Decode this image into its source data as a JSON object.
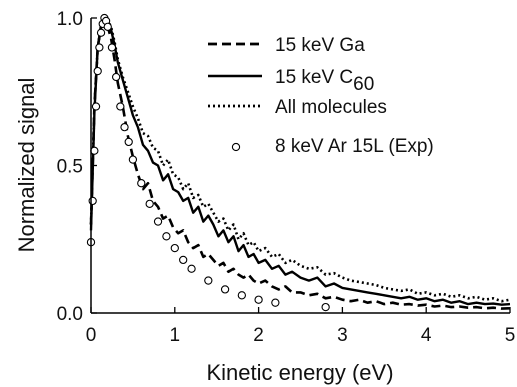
{
  "chart_data": {
    "type": "line",
    "xlabel": "Kinetic energy (eV)",
    "ylabel": "Normalized signal",
    "xlim": [
      0,
      5
    ],
    "ylim": [
      0,
      1.0
    ],
    "x_ticks": [
      "0",
      "1",
      "2",
      "3",
      "4",
      "5"
    ],
    "y_ticks": [
      "0.0",
      "0.5",
      "1.0"
    ],
    "grid": false,
    "legend_position": "top-right",
    "series": [
      {
        "name": "15 keV Ga",
        "name_parts": [
          "15 keV Ga",
          ""
        ],
        "style": "dashed",
        "color": "#000000",
        "x": [
          0.0,
          0.04,
          0.08,
          0.12,
          0.16,
          0.2,
          0.24,
          0.28,
          0.32,
          0.38,
          0.44,
          0.5,
          0.56,
          0.62,
          0.68,
          0.74,
          0.8,
          0.86,
          0.92,
          0.98,
          1.04,
          1.1,
          1.16,
          1.22,
          1.28,
          1.34,
          1.4,
          1.46,
          1.52,
          1.58,
          1.64,
          1.7,
          1.76,
          1.82,
          1.88,
          1.94,
          2.0,
          2.08,
          2.16,
          2.24,
          2.32,
          2.4,
          2.5,
          2.6,
          2.7,
          2.8,
          2.9,
          3.0,
          3.1,
          3.2,
          3.3,
          3.4,
          3.5,
          3.6,
          3.7,
          3.8,
          3.9,
          4.0,
          4.1,
          4.2,
          4.3,
          4.4,
          4.5,
          4.6,
          4.7,
          4.8,
          4.9,
          5.0
        ],
        "y": [
          0.3,
          0.7,
          0.9,
          0.97,
          0.99,
          0.97,
          0.93,
          0.86,
          0.78,
          0.7,
          0.6,
          0.53,
          0.47,
          0.42,
          0.44,
          0.38,
          0.36,
          0.32,
          0.33,
          0.29,
          0.27,
          0.28,
          0.24,
          0.22,
          0.23,
          0.19,
          0.2,
          0.18,
          0.16,
          0.17,
          0.14,
          0.15,
          0.13,
          0.12,
          0.13,
          0.11,
          0.1,
          0.11,
          0.09,
          0.08,
          0.09,
          0.07,
          0.07,
          0.06,
          0.065,
          0.05,
          0.055,
          0.045,
          0.04,
          0.045,
          0.035,
          0.04,
          0.03,
          0.035,
          0.028,
          0.03,
          0.025,
          0.028,
          0.022,
          0.025,
          0.02,
          0.022,
          0.018,
          0.02,
          0.016,
          0.018,
          0.015,
          0.016
        ]
      },
      {
        "name": "15 keV C60",
        "name_parts": [
          "15 keV C",
          "60"
        ],
        "style": "solid",
        "color": "#000000",
        "x": [
          0.0,
          0.04,
          0.08,
          0.12,
          0.16,
          0.2,
          0.24,
          0.28,
          0.32,
          0.38,
          0.44,
          0.5,
          0.56,
          0.62,
          0.68,
          0.74,
          0.8,
          0.86,
          0.92,
          0.98,
          1.04,
          1.1,
          1.16,
          1.22,
          1.28,
          1.34,
          1.4,
          1.46,
          1.52,
          1.58,
          1.64,
          1.7,
          1.76,
          1.82,
          1.88,
          1.94,
          2.0,
          2.08,
          2.16,
          2.24,
          2.32,
          2.4,
          2.5,
          2.6,
          2.7,
          2.8,
          2.9,
          3.0,
          3.1,
          3.2,
          3.3,
          3.4,
          3.5,
          3.6,
          3.7,
          3.8,
          3.9,
          4.0,
          4.1,
          4.2,
          4.3,
          4.4,
          4.5,
          4.6,
          4.7,
          4.8,
          4.9,
          5.0
        ],
        "y": [
          0.28,
          0.68,
          0.9,
          0.98,
          1.0,
          0.99,
          0.96,
          0.91,
          0.85,
          0.79,
          0.73,
          0.67,
          0.63,
          0.57,
          0.55,
          0.51,
          0.5,
          0.45,
          0.47,
          0.42,
          0.41,
          0.38,
          0.39,
          0.34,
          0.36,
          0.31,
          0.33,
          0.3,
          0.26,
          0.28,
          0.24,
          0.26,
          0.21,
          0.23,
          0.19,
          0.2,
          0.17,
          0.18,
          0.15,
          0.16,
          0.13,
          0.14,
          0.12,
          0.11,
          0.12,
          0.09,
          0.1,
          0.085,
          0.08,
          0.075,
          0.07,
          0.065,
          0.06,
          0.055,
          0.05,
          0.055,
          0.045,
          0.05,
          0.04,
          0.045,
          0.035,
          0.04,
          0.03,
          0.035,
          0.03,
          0.032,
          0.028,
          0.03
        ]
      },
      {
        "name": "All molecules",
        "name_parts": [
          "All molecules",
          ""
        ],
        "style": "dotted",
        "color": "#000000",
        "x": [
          0.0,
          0.04,
          0.08,
          0.12,
          0.16,
          0.2,
          0.24,
          0.28,
          0.32,
          0.38,
          0.44,
          0.5,
          0.56,
          0.62,
          0.68,
          0.74,
          0.8,
          0.86,
          0.92,
          0.98,
          1.04,
          1.1,
          1.16,
          1.22,
          1.28,
          1.34,
          1.4,
          1.46,
          1.52,
          1.58,
          1.64,
          1.7,
          1.76,
          1.82,
          1.88,
          1.94,
          2.0,
          2.08,
          2.16,
          2.24,
          2.32,
          2.4,
          2.5,
          2.6,
          2.7,
          2.8,
          2.9,
          3.0,
          3.1,
          3.2,
          3.3,
          3.4,
          3.5,
          3.6,
          3.7,
          3.8,
          3.9,
          4.0,
          4.1,
          4.2,
          4.3,
          4.4,
          4.5,
          4.6,
          4.7,
          4.8,
          4.9,
          5.0
        ],
        "y": [
          0.3,
          0.7,
          0.9,
          0.97,
          1.0,
          0.99,
          0.97,
          0.92,
          0.86,
          0.8,
          0.75,
          0.7,
          0.66,
          0.61,
          0.6,
          0.56,
          0.55,
          0.5,
          0.52,
          0.47,
          0.46,
          0.42,
          0.44,
          0.39,
          0.4,
          0.36,
          0.37,
          0.34,
          0.31,
          0.32,
          0.28,
          0.3,
          0.25,
          0.27,
          0.23,
          0.24,
          0.21,
          0.22,
          0.19,
          0.2,
          0.17,
          0.18,
          0.16,
          0.15,
          0.155,
          0.13,
          0.135,
          0.12,
          0.11,
          0.105,
          0.1,
          0.095,
          0.085,
          0.08,
          0.075,
          0.08,
          0.065,
          0.07,
          0.06,
          0.065,
          0.055,
          0.06,
          0.05,
          0.055,
          0.045,
          0.05,
          0.04,
          0.045
        ]
      },
      {
        "name": "8 keV Ar 15L (Exp)",
        "name_parts": [
          "8 keV Ar 15L (Exp)",
          ""
        ],
        "style": "open-circles",
        "color": "#000000",
        "x": [
          0.0,
          0.02,
          0.04,
          0.06,
          0.08,
          0.1,
          0.12,
          0.14,
          0.16,
          0.18,
          0.2,
          0.25,
          0.3,
          0.35,
          0.4,
          0.45,
          0.5,
          0.6,
          0.7,
          0.8,
          0.9,
          1.0,
          1.1,
          1.2,
          1.4,
          1.6,
          1.8,
          2.0,
          2.2,
          2.8
        ],
        "y": [
          0.24,
          0.38,
          0.55,
          0.7,
          0.82,
          0.9,
          0.95,
          0.98,
          1.0,
          0.99,
          0.97,
          0.9,
          0.8,
          0.7,
          0.63,
          0.58,
          0.52,
          0.44,
          0.37,
          0.31,
          0.26,
          0.22,
          0.18,
          0.15,
          0.11,
          0.08,
          0.06,
          0.045,
          0.035,
          0.02
        ]
      }
    ]
  }
}
